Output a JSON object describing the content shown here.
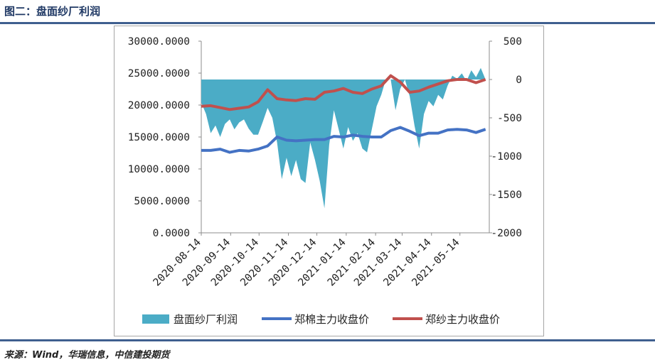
{
  "header": {
    "title": "图二：盘面纱厂利润"
  },
  "footer": {
    "source": "来源：Wind，华瑞信息，中信建投期货"
  },
  "chart_data": {
    "type": "area+line",
    "title": "",
    "x_tick_labels": [
      "2020-08-14",
      "2020-09-14",
      "2020-10-14",
      "2020-11-14",
      "2020-12-14",
      "2021-01-14",
      "2021-02-14",
      "2021-03-14",
      "2021-04-14",
      "2021-05-14"
    ],
    "left_axis": {
      "ylim": [
        0,
        30000
      ],
      "tick_labels": [
        "0.0000",
        "5000.0000",
        "10000.0000",
        "15000.0000",
        "20000.0000",
        "25000.0000",
        "30000.0000"
      ]
    },
    "right_axis": {
      "ylim": [
        -2000,
        500
      ],
      "tick_labels": [
        "-2000",
        "-1500",
        "-1000",
        "-500",
        "0",
        "500"
      ]
    },
    "colors": {
      "profit": "#4bacc6",
      "cotton": "#4472c4",
      "yarn": "#c0504d"
    },
    "series": [
      {
        "name": "盘面纱厂利润",
        "axis": "right",
        "kind": "area",
        "x": [
          "2020-08-14",
          "2020-08-19",
          "2020-08-24",
          "2020-08-29",
          "2020-09-03",
          "2020-09-08",
          "2020-09-13",
          "2020-09-18",
          "2020-09-23",
          "2020-09-28",
          "2020-10-03",
          "2020-10-08",
          "2020-10-13",
          "2020-10-18",
          "2020-10-23",
          "2020-10-28",
          "2020-11-02",
          "2020-11-07",
          "2020-11-12",
          "2020-11-17",
          "2020-11-22",
          "2020-11-27",
          "2020-12-02",
          "2020-12-07",
          "2020-12-12",
          "2020-12-17",
          "2020-12-22",
          "2020-12-27",
          "2021-01-01",
          "2021-01-06",
          "2021-01-11",
          "2021-01-16",
          "2021-01-21",
          "2021-01-26",
          "2021-01-31",
          "2021-02-05",
          "2021-02-10",
          "2021-02-15",
          "2021-02-20",
          "2021-02-25",
          "2021-03-02",
          "2021-03-07",
          "2021-03-12",
          "2021-03-17",
          "2021-03-22",
          "2021-03-27",
          "2021-04-01",
          "2021-04-06",
          "2021-04-11",
          "2021-04-16",
          "2021-04-21",
          "2021-04-26",
          "2021-05-01",
          "2021-05-06",
          "2021-05-11",
          "2021-05-16",
          "2021-05-21",
          "2021-05-26",
          "2021-05-31",
          "2021-06-05",
          "2021-06-10"
        ],
        "values": [
          -300,
          -450,
          -700,
          -600,
          -750,
          -580,
          -520,
          -650,
          -560,
          -520,
          -640,
          -720,
          -720,
          -550,
          -370,
          -500,
          -820,
          -1300,
          -1020,
          -1260,
          -1050,
          -1300,
          -1350,
          -820,
          -1050,
          -1320,
          -1680,
          -850,
          -400,
          -650,
          -900,
          -620,
          -800,
          -700,
          -900,
          -950,
          -650,
          -350,
          -200,
          10,
          0,
          -400,
          -120,
          0,
          -220,
          -600,
          -900,
          -450,
          -280,
          -350,
          -200,
          -260,
          -80,
          50,
          10,
          80,
          -20,
          120,
          30,
          150,
          0
        ]
      },
      {
        "name": "郑棉主力收盘价",
        "axis": "left",
        "kind": "line",
        "x": [
          "2020-08-14",
          "2020-08-24",
          "2020-09-03",
          "2020-09-13",
          "2020-09-23",
          "2020-10-03",
          "2020-10-13",
          "2020-10-23",
          "2020-11-02",
          "2020-11-12",
          "2020-11-22",
          "2020-12-02",
          "2020-12-12",
          "2020-12-22",
          "2021-01-01",
          "2021-01-11",
          "2021-01-21",
          "2021-01-31",
          "2021-02-10",
          "2021-02-20",
          "2021-03-02",
          "2021-03-12",
          "2021-03-22",
          "2021-04-01",
          "2021-04-11",
          "2021-04-21",
          "2021-05-01",
          "2021-05-11",
          "2021-05-21",
          "2021-05-31",
          "2021-06-10"
        ],
        "values": [
          12900,
          12900,
          13100,
          12600,
          12900,
          12800,
          13100,
          13600,
          15000,
          14500,
          14400,
          14500,
          14600,
          14600,
          15100,
          15000,
          15300,
          15100,
          15000,
          15000,
          16000,
          16500,
          15900,
          15200,
          15600,
          15600,
          16100,
          16200,
          16100,
          15700,
          16200
        ]
      },
      {
        "name": "郑纱主力收盘价",
        "axis": "left",
        "kind": "line",
        "x": [
          "2020-08-14",
          "2020-08-24",
          "2020-09-03",
          "2020-09-13",
          "2020-09-23",
          "2020-10-03",
          "2020-10-13",
          "2020-10-23",
          "2020-11-02",
          "2020-11-12",
          "2020-11-22",
          "2020-12-02",
          "2020-12-12",
          "2020-12-22",
          "2021-01-01",
          "2021-01-11",
          "2021-01-21",
          "2021-01-31",
          "2021-02-10",
          "2021-02-20",
          "2021-03-02",
          "2021-03-12",
          "2021-03-22",
          "2021-04-01",
          "2021-04-11",
          "2021-04-21",
          "2021-05-01",
          "2021-05-11",
          "2021-05-21",
          "2021-05-31",
          "2021-06-10"
        ],
        "values": [
          19800,
          19900,
          19600,
          19300,
          19500,
          19700,
          20500,
          22400,
          21000,
          20800,
          20700,
          21000,
          20900,
          22000,
          22200,
          22600,
          22000,
          21800,
          22500,
          23000,
          24600,
          23600,
          22000,
          22200,
          22800,
          23300,
          23800,
          24000,
          24000,
          23500,
          24000
        ]
      }
    ]
  }
}
